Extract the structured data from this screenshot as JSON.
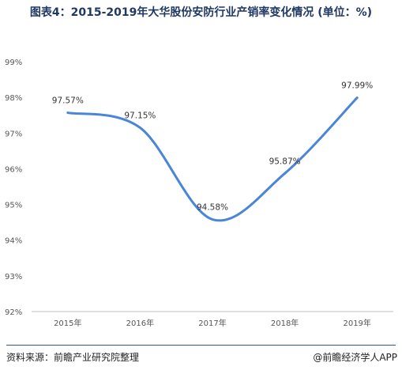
{
  "title": "图表4：2015-2019年大华股份安防行业产销率变化情况 (单位：%)",
  "footer": {
    "source": "资料来源：前瞻产业研究院整理",
    "brand": "@前瞻经济学人APP"
  },
  "chart_data": {
    "type": "line",
    "categories": [
      "2015年",
      "2016年",
      "2017年",
      "2018年",
      "2019年"
    ],
    "values": [
      97.57,
      97.15,
      94.58,
      95.87,
      97.99
    ],
    "data_labels": [
      "97.57%",
      "97.15%",
      "94.58%",
      "95.87%",
      "97.99%"
    ],
    "y_ticks": [
      "92%",
      "93%",
      "94%",
      "95%",
      "96%",
      "97%",
      "98%",
      "99%"
    ],
    "ylim": [
      92,
      99
    ],
    "grid": false,
    "line_color": "#4a86d8",
    "smooth": true
  }
}
